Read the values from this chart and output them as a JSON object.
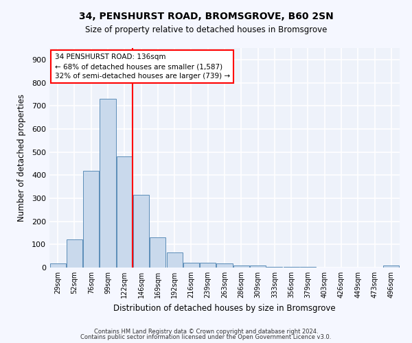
{
  "title1": "34, PENSHURST ROAD, BROMSGROVE, B60 2SN",
  "title2": "Size of property relative to detached houses in Bromsgrove",
  "xlabel": "Distribution of detached houses by size in Bromsgrove",
  "ylabel": "Number of detached properties",
  "categories": [
    "29sqm",
    "52sqm",
    "76sqm",
    "99sqm",
    "122sqm",
    "146sqm",
    "169sqm",
    "192sqm",
    "216sqm",
    "239sqm",
    "263sqm",
    "286sqm",
    "309sqm",
    "333sqm",
    "356sqm",
    "379sqm",
    "403sqm",
    "426sqm",
    "449sqm",
    "473sqm",
    "496sqm"
  ],
  "values": [
    18,
    122,
    418,
    730,
    480,
    315,
    130,
    65,
    22,
    20,
    18,
    10,
    8,
    4,
    3,
    2,
    1,
    1,
    0,
    0,
    8
  ],
  "bar_color": "#c9d9ec",
  "bar_edge_color": "#5b8db8",
  "background_color": "#eef2fa",
  "grid_color": "#ffffff",
  "annotation_box_text": "34 PENSHURST ROAD: 136sqm\n← 68% of detached houses are smaller (1,587)\n32% of semi-detached houses are larger (739) →",
  "red_line_x": 4.48,
  "ylim": [
    0,
    950
  ],
  "yticks": [
    0,
    100,
    200,
    300,
    400,
    500,
    600,
    700,
    800,
    900
  ],
  "footer1": "Contains HM Land Registry data © Crown copyright and database right 2024.",
  "footer2": "Contains public sector information licensed under the Open Government Licence v3.0.",
  "fig_width": 6.0,
  "fig_height": 5.0,
  "dpi": 100
}
